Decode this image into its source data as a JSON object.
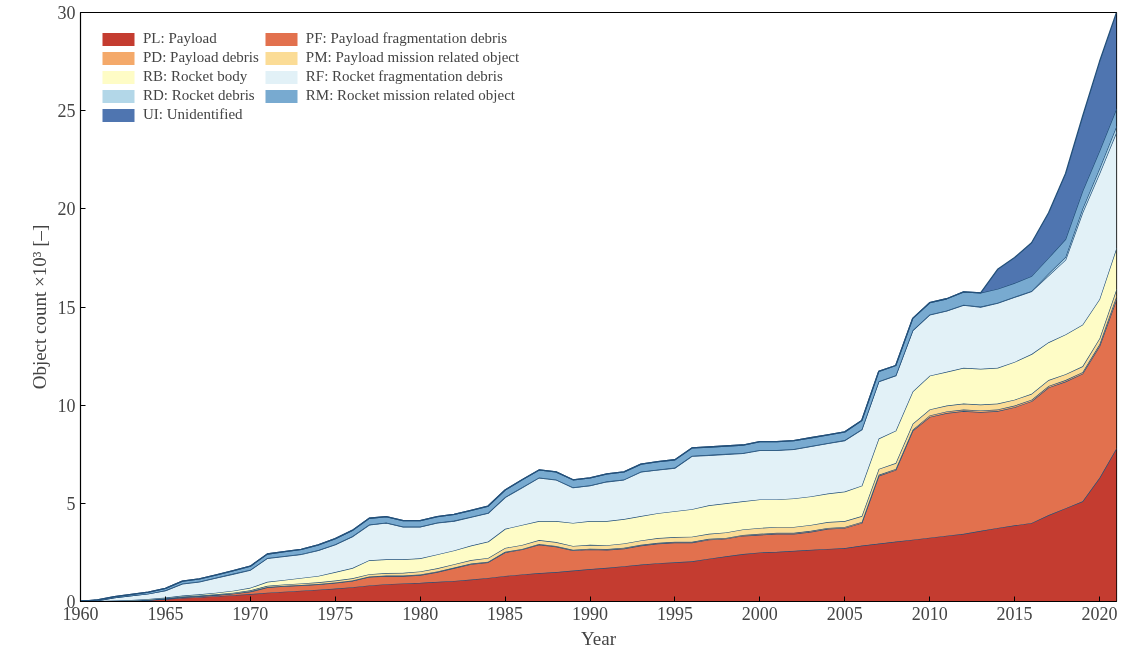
{
  "chart_data": {
    "type": "area",
    "stacked": true,
    "xlabel": "Year",
    "ylabel": "Object count ×10³ [–]",
    "x": [
      1960,
      1961,
      1962,
      1963,
      1964,
      1965,
      1966,
      1967,
      1968,
      1969,
      1970,
      1971,
      1972,
      1973,
      1974,
      1975,
      1976,
      1977,
      1978,
      1979,
      1980,
      1981,
      1982,
      1983,
      1984,
      1985,
      1986,
      1987,
      1988,
      1989,
      1990,
      1991,
      1992,
      1993,
      1994,
      1995,
      1996,
      1997,
      1998,
      1999,
      2000,
      2001,
      2002,
      2003,
      2004,
      2005,
      2006,
      2007,
      2008,
      2009,
      2010,
      2011,
      2012,
      2013,
      2014,
      2015,
      2016,
      2017,
      2018,
      2019,
      2020,
      2021
    ],
    "xlim": [
      1960,
      2021
    ],
    "xticks": [
      1960,
      1965,
      1970,
      1975,
      1980,
      1985,
      1990,
      1995,
      2000,
      2005,
      2010,
      2015,
      2020
    ],
    "ylim": [
      0,
      30
    ],
    "yticks": [
      0,
      5,
      10,
      15,
      20,
      25,
      30
    ],
    "grid": false,
    "legend": "top left",
    "series": [
      {
        "name": "PL: Payload",
        "color": "#c43c30",
        "values": [
          0,
          0.01,
          0.03,
          0.05,
          0.08,
          0.12,
          0.18,
          0.22,
          0.27,
          0.32,
          0.38,
          0.45,
          0.5,
          0.55,
          0.6,
          0.66,
          0.73,
          0.82,
          0.88,
          0.92,
          0.95,
          1.0,
          1.05,
          1.12,
          1.2,
          1.3,
          1.38,
          1.45,
          1.5,
          1.58,
          1.65,
          1.72,
          1.8,
          1.88,
          1.95,
          2.0,
          2.05,
          2.18,
          2.3,
          2.42,
          2.5,
          2.53,
          2.58,
          2.63,
          2.68,
          2.72,
          2.85,
          2.95,
          3.05,
          3.15,
          3.25,
          3.35,
          3.45,
          3.6,
          3.75,
          3.88,
          4.0,
          4.4,
          4.75,
          5.1,
          6.3,
          7.8
        ]
      },
      {
        "name": "PF: Payload fragmentation debris",
        "color": "#e2714e",
        "values": [
          0,
          0,
          0,
          0,
          0.01,
          0.02,
          0.04,
          0.05,
          0.06,
          0.08,
          0.12,
          0.27,
          0.28,
          0.27,
          0.27,
          0.29,
          0.32,
          0.43,
          0.42,
          0.38,
          0.4,
          0.5,
          0.65,
          0.78,
          0.8,
          1.2,
          1.27,
          1.45,
          1.3,
          1.02,
          1.0,
          0.91,
          0.9,
          0.97,
          1.0,
          1.0,
          0.95,
          0.97,
          0.9,
          0.93,
          0.9,
          0.92,
          0.87,
          0.92,
          1.02,
          1.03,
          1.15,
          3.45,
          3.65,
          5.55,
          6.15,
          6.25,
          6.25,
          6.05,
          5.95,
          6.02,
          6.2,
          6.5,
          6.45,
          6.5,
          6.7,
          7.6
        ]
      },
      {
        "name": "PD: Payload debris",
        "color": "#f4a96a",
        "values": [
          0,
          0,
          0,
          0,
          0,
          0.01,
          0.01,
          0.01,
          0.01,
          0.01,
          0.02,
          0.02,
          0.02,
          0.02,
          0.02,
          0.02,
          0.02,
          0.02,
          0.02,
          0.02,
          0.03,
          0.03,
          0.03,
          0.03,
          0.03,
          0.03,
          0.03,
          0.03,
          0.03,
          0.03,
          0.04,
          0.04,
          0.04,
          0.04,
          0.04,
          0.04,
          0.04,
          0.04,
          0.04,
          0.04,
          0.05,
          0.05,
          0.05,
          0.05,
          0.05,
          0.05,
          0.05,
          0.05,
          0.05,
          0.05,
          0.08,
          0.08,
          0.08,
          0.08,
          0.08,
          0.08,
          0.08,
          0.08,
          0.08,
          0.08,
          0.1,
          0.15
        ]
      },
      {
        "name": "PM: Payload mission related object",
        "color": "#fbdc96",
        "values": [
          0,
          0,
          0,
          0,
          0,
          0.01,
          0.02,
          0.02,
          0.03,
          0.04,
          0.05,
          0.06,
          0.07,
          0.08,
          0.09,
          0.1,
          0.11,
          0.12,
          0.13,
          0.14,
          0.15,
          0.16,
          0.17,
          0.18,
          0.19,
          0.2,
          0.2,
          0.2,
          0.2,
          0.2,
          0.2,
          0.2,
          0.22,
          0.22,
          0.24,
          0.24,
          0.26,
          0.26,
          0.28,
          0.28,
          0.3,
          0.3,
          0.3,
          0.3,
          0.3,
          0.3,
          0.3,
          0.3,
          0.3,
          0.3,
          0.3,
          0.3,
          0.3,
          0.3,
          0.3,
          0.3,
          0.3,
          0.3,
          0.3,
          0.3,
          0.3,
          0.35
        ]
      },
      {
        "name": "RB: Rocket body",
        "color": "#fefcc6",
        "values": [
          0,
          0.01,
          0.02,
          0.03,
          0.04,
          0.04,
          0.05,
          0.07,
          0.08,
          0.1,
          0.13,
          0.2,
          0.23,
          0.28,
          0.32,
          0.43,
          0.52,
          0.71,
          0.7,
          0.69,
          0.67,
          0.71,
          0.7,
          0.74,
          0.83,
          0.97,
          1.02,
          0.97,
          1.07,
          1.17,
          1.21,
          1.23,
          1.24,
          1.24,
          1.27,
          1.32,
          1.4,
          1.45,
          1.48,
          1.43,
          1.45,
          1.4,
          1.45,
          1.45,
          1.45,
          1.5,
          1.55,
          1.55,
          1.65,
          1.65,
          1.72,
          1.72,
          1.82,
          1.82,
          1.82,
          1.92,
          2.02,
          1.92,
          2.02,
          2.12,
          2.0,
          2.1
        ]
      },
      {
        "name": "RF: Rocket fragmentation debris",
        "color": "#e2f1f7",
        "values": [
          0,
          0.03,
          0.15,
          0.22,
          0.27,
          0.35,
          0.6,
          0.63,
          0.75,
          0.85,
          0.9,
          1.2,
          1.2,
          1.2,
          1.3,
          1.4,
          1.6,
          1.8,
          1.85,
          1.65,
          1.6,
          1.6,
          1.5,
          1.45,
          1.45,
          1.6,
          1.9,
          2.2,
          2.1,
          1.8,
          1.8,
          2.0,
          2.0,
          2.25,
          2.2,
          2.2,
          2.7,
          2.55,
          2.5,
          2.45,
          2.5,
          2.5,
          2.5,
          2.55,
          2.55,
          2.6,
          2.85,
          2.9,
          2.8,
          3.1,
          3.1,
          3.1,
          3.2,
          3.15,
          3.3,
          3.3,
          3.2,
          3.4,
          3.8,
          5.7,
          6.4,
          5.9
        ]
      },
      {
        "name": "RD: Rocket debris",
        "color": "#b3d7e8",
        "values": [
          0,
          0,
          0,
          0,
          0,
          0.02,
          0.02,
          0.02,
          0.02,
          0.02,
          0.02,
          0.02,
          0.02,
          0.02,
          0.02,
          0.02,
          0.02,
          0.02,
          0.02,
          0.02,
          0.02,
          0.02,
          0.02,
          0.02,
          0.02,
          0.02,
          0.02,
          0.02,
          0.02,
          0.02,
          0.02,
          0.02,
          0.02,
          0.02,
          0.02,
          0.02,
          0.02,
          0.02,
          0.02,
          0.02,
          0.02,
          0.02,
          0.02,
          0.02,
          0.02,
          0.02,
          0.02,
          0.02,
          0.02,
          0.02,
          0.02,
          0.02,
          0.02,
          0.02,
          0.02,
          0.02,
          0.02,
          0.1,
          0.15,
          0.2,
          0.25,
          0.3
        ]
      },
      {
        "name": "RM: Rocket mission related object",
        "color": "#78aad0",
        "values": [
          0,
          0.03,
          0.05,
          0.06,
          0.08,
          0.1,
          0.12,
          0.13,
          0.14,
          0.15,
          0.18,
          0.2,
          0.22,
          0.24,
          0.26,
          0.28,
          0.3,
          0.32,
          0.3,
          0.3,
          0.3,
          0.3,
          0.32,
          0.32,
          0.34,
          0.36,
          0.38,
          0.38,
          0.38,
          0.38,
          0.38,
          0.38,
          0.38,
          0.38,
          0.4,
          0.4,
          0.4,
          0.4,
          0.4,
          0.4,
          0.42,
          0.42,
          0.42,
          0.42,
          0.42,
          0.42,
          0.45,
          0.5,
          0.5,
          0.6,
          0.6,
          0.6,
          0.65,
          0.7,
          0.7,
          0.7,
          0.75,
          0.8,
          0.9,
          0.9,
          0.9,
          0.9
        ]
      },
      {
        "name": "UI: Unidentified",
        "color": "#4f75b0",
        "values": [
          0,
          0,
          0,
          0,
          0,
          0,
          0,
          0,
          0,
          0,
          0,
          0,
          0,
          0,
          0,
          0,
          0,
          0,
          0,
          0,
          0,
          0,
          0,
          0,
          0,
          0,
          0,
          0,
          0,
          0,
          0,
          0,
          0,
          0,
          0,
          0,
          0,
          0,
          0,
          0,
          0,
          0,
          0,
          0,
          0,
          0,
          0,
          0,
          0,
          0,
          0,
          0,
          0,
          0,
          1.0,
          1.3,
          1.7,
          2.3,
          3.35,
          3.8,
          4.55,
          4.9
        ]
      }
    ]
  }
}
